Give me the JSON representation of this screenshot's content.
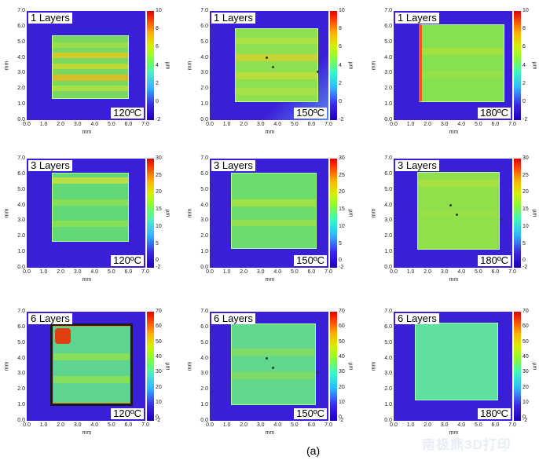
{
  "axis_labels": {
    "x": "mm",
    "y": "mm",
    "colorbar_unit": "µm"
  },
  "xticks": [
    "0.0",
    "1.0",
    "2.0",
    "3.0",
    "4.0",
    "5.0",
    "6.0",
    "7.0"
  ],
  "yticks": [
    "0.0",
    "1.0",
    "2.0",
    "3.0",
    "4.0",
    "5.0",
    "6.0",
    "7.0"
  ],
  "caption": "(a)",
  "watermark": "南极熊3D打印",
  "chart_data": [
    {
      "type": "heatmap",
      "layer_label": "1 Layers",
      "temp_label": "120ºC",
      "xlim": [
        0,
        7
      ],
      "ylim": [
        0,
        7
      ],
      "colorbar_ticks": [
        "10",
        "8",
        "6",
        "4",
        "2",
        "0",
        "-2"
      ],
      "colorbar_range": [
        -2,
        10
      ]
    },
    {
      "type": "heatmap",
      "layer_label": "1 Layers",
      "temp_label": "150ºC",
      "xlim": [
        0,
        7
      ],
      "ylim": [
        0,
        7
      ],
      "colorbar_ticks": [
        "10",
        "8",
        "6",
        "4",
        "2",
        "0",
        "-2"
      ],
      "colorbar_range": [
        -2,
        10
      ]
    },
    {
      "type": "heatmap",
      "layer_label": "1 Layers",
      "temp_label": "180ºC",
      "xlim": [
        0,
        7
      ],
      "ylim": [
        0,
        7
      ],
      "colorbar_ticks": [
        "10",
        "8",
        "6",
        "4",
        "2",
        "0",
        "-2"
      ],
      "colorbar_range": [
        -2,
        10
      ]
    },
    {
      "type": "heatmap",
      "layer_label": "3 Layers",
      "temp_label": "120ºC",
      "xlim": [
        0,
        7
      ],
      "ylim": [
        0,
        7
      ],
      "colorbar_ticks": [
        "30",
        "25",
        "20",
        "15",
        "10",
        "5",
        "0",
        "-2"
      ],
      "colorbar_range": [
        -2,
        30
      ]
    },
    {
      "type": "heatmap",
      "layer_label": "3 Layers",
      "temp_label": "150ºC",
      "xlim": [
        0,
        7
      ],
      "ylim": [
        0,
        7
      ],
      "colorbar_ticks": [
        "30",
        "25",
        "20",
        "15",
        "10",
        "5",
        "0",
        "-2"
      ],
      "colorbar_range": [
        -2,
        30
      ]
    },
    {
      "type": "heatmap",
      "layer_label": "3 Layers",
      "temp_label": "180ºC",
      "xlim": [
        0,
        7
      ],
      "ylim": [
        0,
        7
      ],
      "colorbar_ticks": [
        "30",
        "25",
        "20",
        "15",
        "10",
        "5",
        "0",
        "-2"
      ],
      "colorbar_range": [
        -2,
        30
      ]
    },
    {
      "type": "heatmap",
      "layer_label": "6 Layers",
      "temp_label": "120ºC",
      "xlim": [
        0,
        7
      ],
      "ylim": [
        0,
        7
      ],
      "colorbar_ticks": [
        "70",
        "60",
        "50",
        "40",
        "30",
        "20",
        "10",
        "0",
        "-2"
      ],
      "colorbar_range": [
        -2,
        70
      ]
    },
    {
      "type": "heatmap",
      "layer_label": "6 Layers",
      "temp_label": "150ºC",
      "xlim": [
        0,
        7
      ],
      "ylim": [
        0,
        7
      ],
      "colorbar_ticks": [
        "70",
        "60",
        "50",
        "40",
        "30",
        "20",
        "10",
        "0",
        "-2"
      ],
      "colorbar_range": [
        -2,
        70
      ]
    },
    {
      "type": "heatmap",
      "layer_label": "6 Layers",
      "temp_label": "180ºC",
      "xlim": [
        0,
        7
      ],
      "ylim": [
        0,
        7
      ],
      "colorbar_ticks": [
        "70",
        "60",
        "50",
        "40",
        "30",
        "20",
        "10",
        "0",
        "-2"
      ],
      "colorbar_range": [
        -2,
        70
      ]
    }
  ]
}
